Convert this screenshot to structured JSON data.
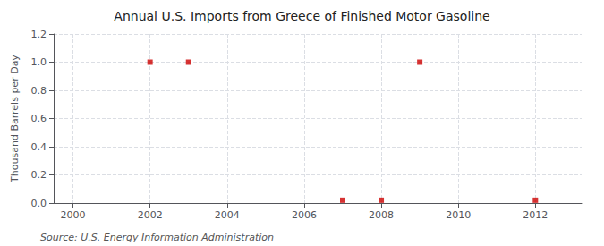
{
  "chart_data": {
    "type": "scatter",
    "title": "Annual U.S. Imports from Greece of Finished Motor Gasoline",
    "ylabel": "Thousand Barrels per Day",
    "annotations": [
      "Source: U.S. Energy Information Administration"
    ],
    "x": [
      2002,
      2003,
      2007,
      2008,
      2009,
      2012
    ],
    "values": [
      1.0,
      1.0,
      0.02,
      0.02,
      1.0,
      0.02
    ],
    "color": "#cc0000",
    "marker": "square",
    "xlim": [
      1999.5,
      2013.2
    ],
    "xticks": [
      2000,
      2002,
      2004,
      2006,
      2008,
      2010,
      2012
    ],
    "ylim": [
      0.0,
      1.2
    ],
    "yticks": [
      {
        "value": 0.0,
        "label": "0.0"
      },
      0.2,
      0.4,
      0.6,
      0.8,
      {
        "value": 1.0,
        "label": "1.0"
      },
      1.2
    ],
    "grid": true
  }
}
